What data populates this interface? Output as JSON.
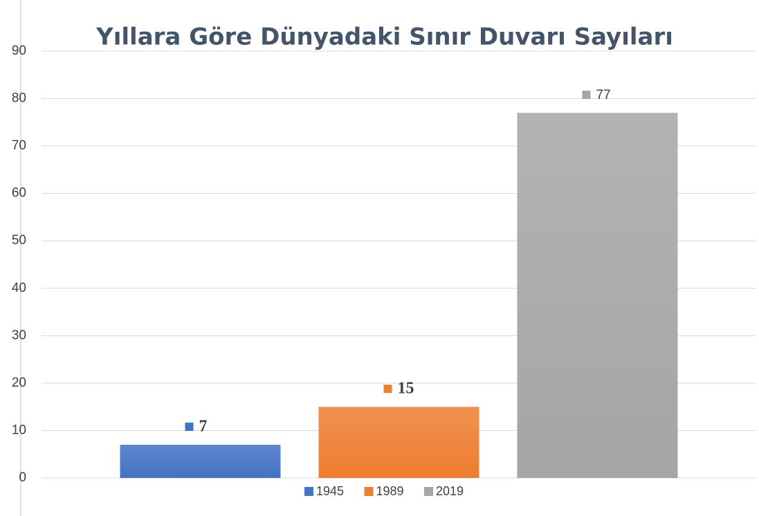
{
  "chart_data": {
    "type": "bar",
    "title": "Yıllara Göre Dünyadaki Sınır Duvarı Sayıları",
    "categories": [
      null
    ],
    "series": [
      {
        "name": "1945",
        "color": "#4472c4",
        "values": [
          7
        ]
      },
      {
        "name": "1989",
        "color": "#ed7d31",
        "values": [
          15
        ]
      },
      {
        "name": "2019",
        "color": "#a5a5a5",
        "values": [
          77
        ]
      }
    ],
    "ylim": [
      0,
      90
    ],
    "yticks": [
      0,
      10,
      20,
      30,
      40,
      50,
      60,
      70,
      80,
      90
    ],
    "grid": true,
    "legend": "bottom",
    "data_labels": true
  }
}
